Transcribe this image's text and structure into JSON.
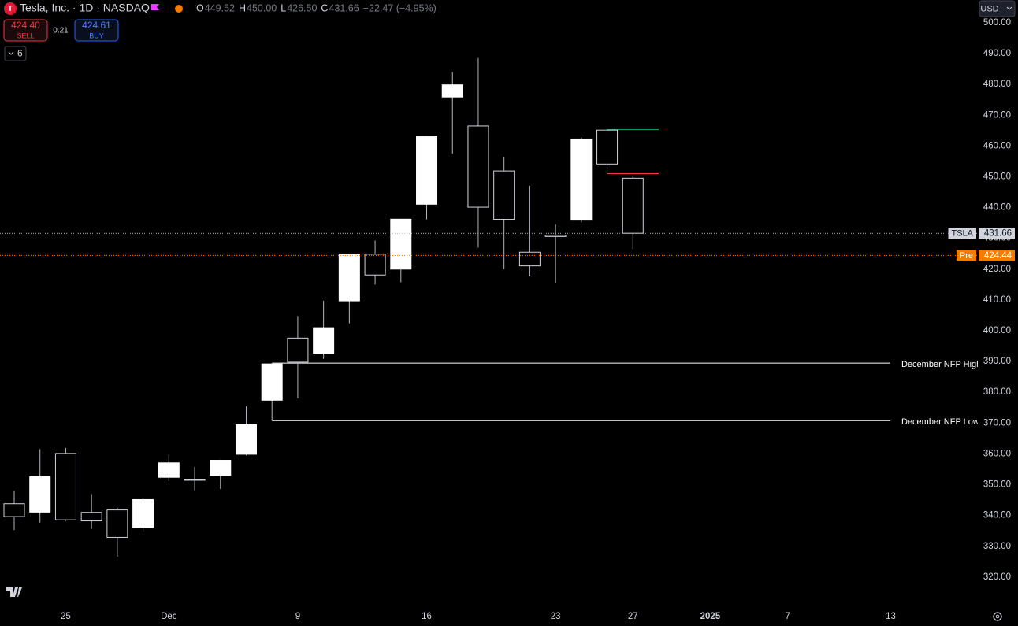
{
  "chart_data": {
    "type": "candlestick",
    "title": "Tesla, Inc. · 1D · NASDAQ",
    "ohlc_legend": [
      {
        "key": "O",
        "text": "449.52"
      },
      {
        "key": "H",
        "text": "450.00"
      },
      {
        "key": "L",
        "text": "426.50"
      },
      {
        "key": "C",
        "text": "431.66"
      }
    ],
    "change": "−22.47 (−4.95%)",
    "trade": {
      "sell_price": "424.40",
      "sell_label": "SELL",
      "spread": "0.21",
      "buy_price": "424.61",
      "buy_label": "BUY"
    },
    "indicators_count": "6",
    "currency": "USD",
    "categories": [
      null,
      null,
      "25",
      null,
      null,
      null,
      "Dec",
      null,
      null,
      null,
      null,
      "9",
      null,
      null,
      null,
      null,
      "16",
      null,
      null,
      null,
      null,
      "23",
      null,
      null,
      "27",
      null,
      null,
      "2025",
      null,
      null,
      "7",
      null,
      null,
      null,
      "13"
    ],
    "open": [
      343.81,
      341.09,
      360.14,
      341.0,
      341.8,
      336.08,
      352.38,
      351.8,
      353.0,
      359.87,
      377.42,
      397.61,
      392.68,
      409.7,
      424.84,
      420.0,
      441.09,
      475.9,
      466.5,
      451.88,
      425.51,
      431.0,
      435.9,
      465.16,
      449.52,
      null,
      null,
      null,
      null,
      null,
      null,
      null,
      null,
      null,
      null
    ],
    "high": [
      347.99,
      361.53,
      361.93,
      346.96,
      342.55,
      345.45,
      360.0,
      355.69,
      358.1,
      375.43,
      389.49,
      404.8,
      409.73,
      424.88,
      429.3,
      436.3,
      463.19,
      483.99,
      488.54,
      456.36,
      447.08,
      434.51,
      462.78,
      465.33,
      450.0,
      null,
      null,
      null,
      null,
      null,
      null,
      null,
      null,
      null,
      null
    ],
    "low": [
      335.28,
      337.7,
      338.2,
      335.66,
      326.59,
      334.65,
      351.15,
      348.2,
      348.6,
      359.5,
      370.8,
      378.01,
      390.85,
      402.38,
      415.0,
      415.71,
      436.15,
      457.51,
      427.01,
      420.02,
      417.64,
      415.41,
      435.14,
      451.02,
      426.5,
      null,
      null,
      null,
      null,
      null,
      null,
      null,
      null,
      null,
      null
    ],
    "close": [
      339.64,
      352.56,
      338.59,
      338.23,
      332.89,
      345.16,
      357.09,
      351.42,
      357.93,
      369.49,
      389.22,
      389.79,
      400.99,
      424.77,
      418.1,
      436.23,
      463.02,
      479.86,
      440.13,
      436.17,
      421.06,
      430.6,
      462.28,
      454.13,
      431.66,
      null,
      null,
      null,
      null,
      null,
      null,
      null,
      null,
      null,
      null
    ],
    "ylim": [
      310.5,
      507.4
    ],
    "yticks": [
      {
        "value": 320,
        "label": "320.00"
      },
      {
        "value": 330,
        "label": "330.00"
      },
      {
        "value": 340,
        "label": "340.00"
      },
      {
        "value": 350,
        "label": "350.00"
      },
      {
        "value": 360,
        "label": "360.00"
      },
      {
        "value": 370,
        "label": "370.00"
      },
      {
        "value": 380,
        "label": "380.00"
      },
      {
        "value": 390,
        "label": "390.00"
      },
      {
        "value": 400,
        "label": "400.00"
      },
      {
        "value": 410,
        "label": "410.00"
      },
      {
        "value": 420,
        "label": "420.00"
      },
      {
        "value": 430,
        "label": "430.00"
      },
      {
        "value": 440,
        "label": "440.00"
      },
      {
        "value": 450,
        "label": "450.00"
      },
      {
        "value": 460,
        "label": "460.00"
      },
      {
        "value": 470,
        "label": "470.00"
      },
      {
        "value": 480,
        "label": "480.00"
      },
      {
        "value": 490,
        "label": "490.00"
      },
      {
        "value": 500,
        "label": "500.00"
      }
    ],
    "grid": false,
    "up_color": "#ffffff",
    "down_color": "#000000",
    "outline_color": "#d1d4dc",
    "wick_color": "#b2b5be",
    "price_lines": [
      {
        "name": "TSLA",
        "value": 431.66,
        "label": "431.66",
        "color": "#b2b5be"
      },
      {
        "name": "Pre",
        "value": 424.44,
        "label": "424.44",
        "color": "#f57c00"
      }
    ],
    "horizontal_lines": [
      {
        "name": "December NFP High",
        "value": 389.49,
        "color": "#ffffff"
      },
      {
        "name": "December NFP Low",
        "value": 370.8,
        "color": "#ffffff"
      }
    ],
    "levels": [
      {
        "value": 465.33,
        "color": "#089981"
      },
      {
        "value": 451.02,
        "color": "#f23645"
      }
    ]
  }
}
